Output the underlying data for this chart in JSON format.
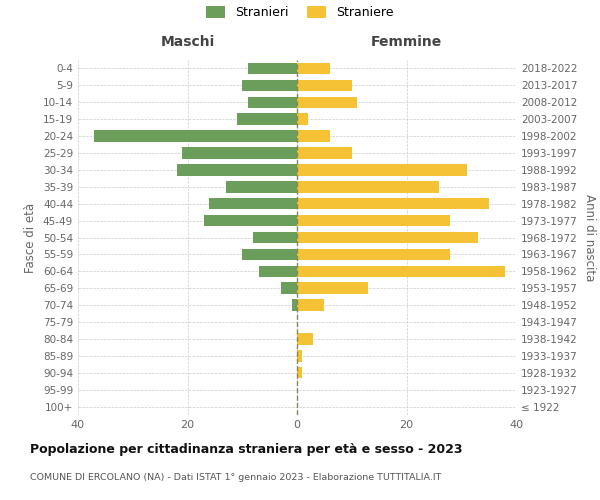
{
  "age_groups": [
    "100+",
    "95-99",
    "90-94",
    "85-89",
    "80-84",
    "75-79",
    "70-74",
    "65-69",
    "60-64",
    "55-59",
    "50-54",
    "45-49",
    "40-44",
    "35-39",
    "30-34",
    "25-29",
    "20-24",
    "15-19",
    "10-14",
    "5-9",
    "0-4"
  ],
  "birth_years": [
    "≤ 1922",
    "1923-1927",
    "1928-1932",
    "1933-1937",
    "1938-1942",
    "1943-1947",
    "1948-1952",
    "1953-1957",
    "1958-1962",
    "1963-1967",
    "1968-1972",
    "1973-1977",
    "1978-1982",
    "1983-1987",
    "1988-1992",
    "1993-1997",
    "1998-2002",
    "2003-2007",
    "2008-2012",
    "2013-2017",
    "2018-2022"
  ],
  "males": [
    0,
    0,
    0,
    0,
    0,
    0,
    1,
    3,
    7,
    10,
    8,
    17,
    16,
    13,
    22,
    21,
    37,
    11,
    9,
    10,
    9
  ],
  "females": [
    0,
    0,
    1,
    1,
    3,
    0,
    5,
    13,
    38,
    28,
    33,
    28,
    35,
    26,
    31,
    10,
    6,
    2,
    11,
    10,
    6
  ],
  "male_color": "#6a9e5a",
  "female_color": "#f5c135",
  "background_color": "#ffffff",
  "grid_color": "#cccccc",
  "title": "Popolazione per cittadinanza straniera per età e sesso - 2023",
  "subtitle": "COMUNE DI ERCOLANO (NA) - Dati ISTAT 1° gennaio 2023 - Elaborazione TUTTITALIA.IT",
  "label_maschi": "Maschi",
  "label_femmine": "Femmine",
  "ylabel_left": "Fasce di età",
  "ylabel_right": "Anni di nascita",
  "legend_male": "Stranieri",
  "legend_female": "Straniere",
  "xlim": 40
}
